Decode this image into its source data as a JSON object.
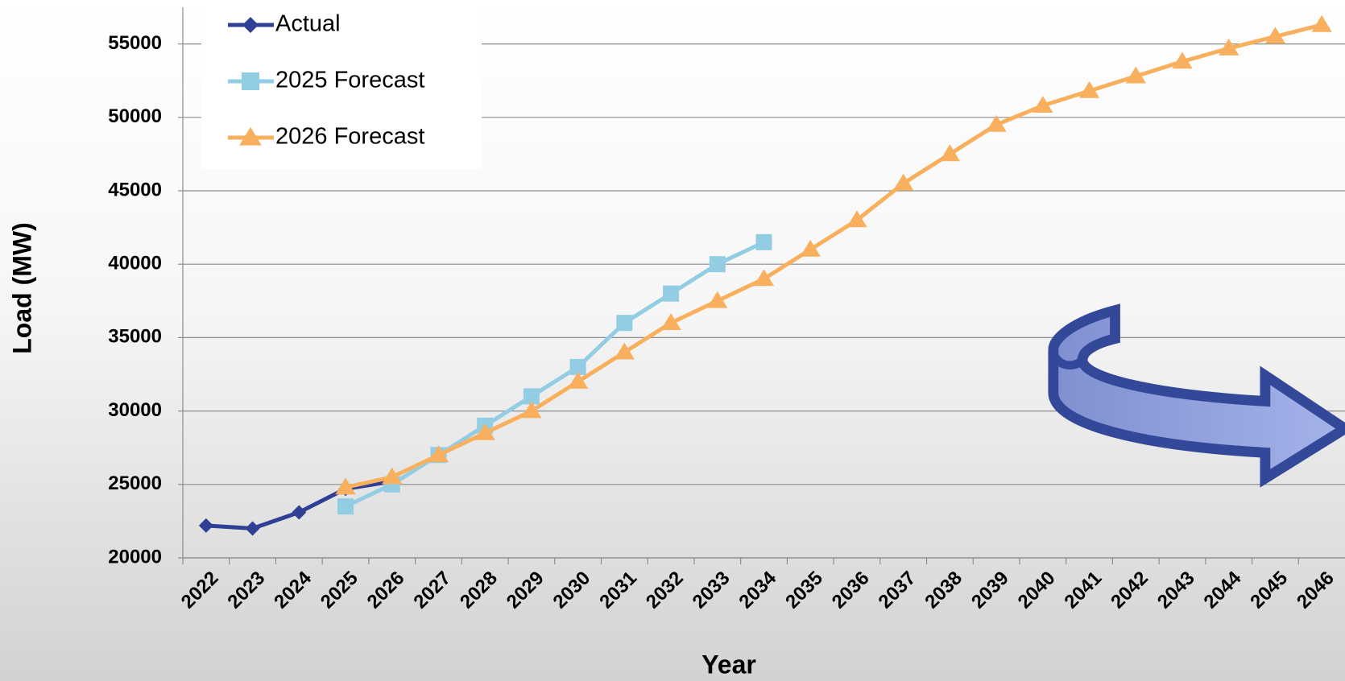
{
  "chart_data": {
    "type": "line",
    "x_label": "Year",
    "y_label": "Load (MW)",
    "categories": [
      "2022",
      "2023",
      "2024",
      "2025",
      "2026",
      "2027",
      "2028",
      "2029",
      "2030",
      "2031",
      "2032",
      "2033",
      "2034",
      "2035",
      "2036",
      "2037",
      "2038",
      "2039",
      "2040",
      "2041",
      "2042",
      "2043",
      "2044",
      "2045",
      "2046"
    ],
    "series": [
      {
        "name": "Actual",
        "color": "#2e3f94",
        "marker": "diamond",
        "values": [
          22200,
          22000,
          23100,
          24700,
          25200,
          null,
          null,
          null,
          null,
          null,
          null,
          null,
          null,
          null,
          null,
          null,
          null,
          null,
          null,
          null,
          null,
          null,
          null,
          null,
          null
        ]
      },
      {
        "name": "2025 Forecast",
        "color": "#92cde3",
        "marker": "square",
        "values": [
          null,
          null,
          null,
          23500,
          25000,
          27000,
          29000,
          31000,
          33000,
          36000,
          38000,
          40000,
          41500,
          null,
          null,
          null,
          null,
          null,
          null,
          null,
          null,
          null,
          null,
          null,
          null
        ]
      },
      {
        "name": "2026 Forecast",
        "color": "#f9b05e",
        "marker": "triangle",
        "values": [
          null,
          null,
          null,
          24800,
          25500,
          27000,
          28500,
          30000,
          32000,
          34000,
          36000,
          37500,
          39000,
          41000,
          43000,
          45500,
          47500,
          49500,
          50800,
          51800,
          52800,
          53800,
          54700,
          55500,
          56300
        ]
      }
    ],
    "ylim": [
      20000,
      57500
    ],
    "yticks": [
      20000,
      25000,
      30000,
      35000,
      40000,
      45000,
      50000,
      55000
    ],
    "grid": true,
    "legend": "top-left"
  }
}
